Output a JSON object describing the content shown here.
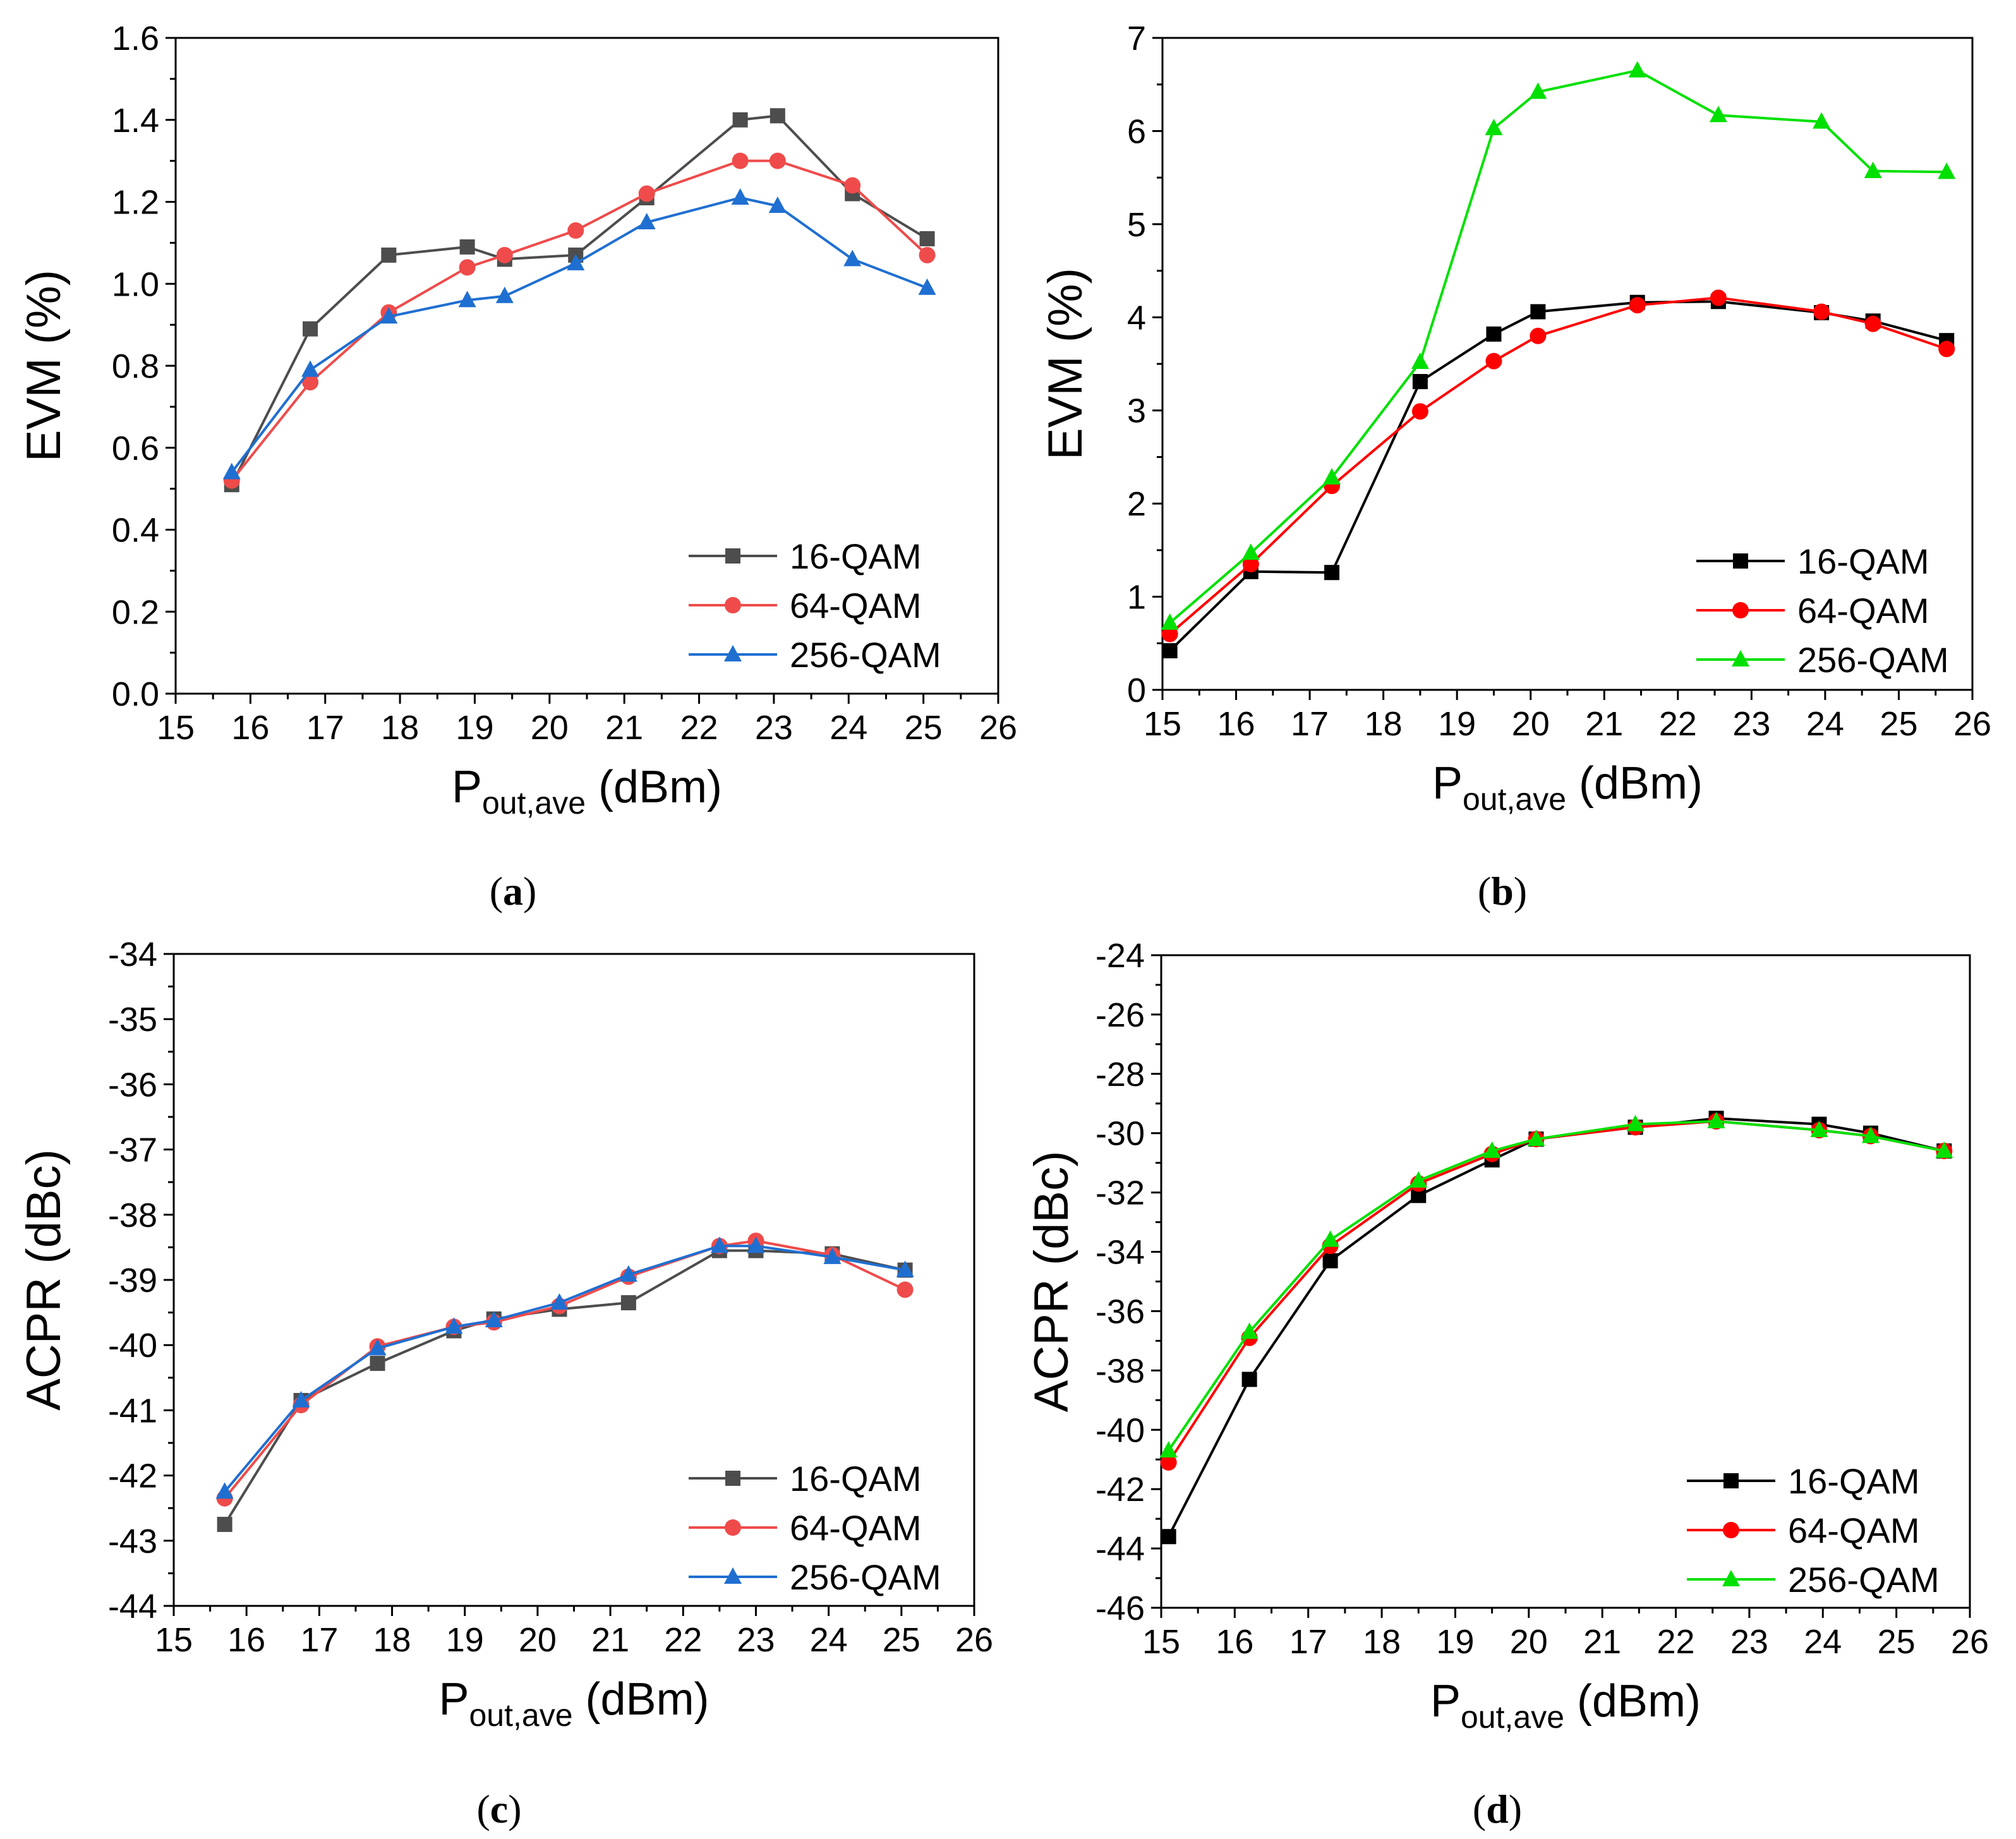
{
  "figure": {
    "captions": [
      "(a)",
      "(b)",
      "(c)",
      "(d)"
    ],
    "caption_parts": [
      {
        "open": "(",
        "letter": "a",
        "close": ")"
      },
      {
        "open": "(",
        "letter": "b",
        "close": ")"
      },
      {
        "open": "(",
        "letter": "c",
        "close": ")"
      },
      {
        "open": "(",
        "letter": "d",
        "close": ")"
      }
    ]
  },
  "chart_data": [
    {
      "type": "line",
      "panel": "a",
      "title": "",
      "xlabel": "P_out,ave (dBm)",
      "xlabel_main": "P",
      "xlabel_sub": "out,ave",
      "xlabel_rest": " (dBm)",
      "ylabel": "EVM (%)",
      "xlim": [
        15,
        26
      ],
      "ylim": [
        0.0,
        1.6
      ],
      "xticks": [
        15,
        16,
        17,
        18,
        19,
        20,
        21,
        22,
        23,
        24,
        25,
        26
      ],
      "yticks": [
        0.0,
        0.2,
        0.4,
        0.6,
        0.8,
        1.0,
        1.2,
        1.4,
        1.6
      ],
      "ytick_labels": [
        "0.0",
        "0.2",
        "0.4",
        "0.6",
        "0.8",
        "1.0",
        "1.2",
        "1.4",
        "1.6"
      ],
      "legend_position": "bottom-right",
      "series": [
        {
          "name": "16-QAM",
          "color": "#4d4d4d",
          "marker": "square",
          "x": [
            15.75,
            16.8,
            17.85,
            18.9,
            19.4,
            20.35,
            21.3,
            22.55,
            23.05,
            24.05,
            25.05
          ],
          "y": [
            0.51,
            0.89,
            1.07,
            1.09,
            1.06,
            1.07,
            1.21,
            1.4,
            1.41,
            1.22,
            1.11
          ]
        },
        {
          "name": "64-QAM",
          "color": "#ef4b4b",
          "marker": "circle",
          "x": [
            15.75,
            16.8,
            17.85,
            18.9,
            19.4,
            20.35,
            21.3,
            22.55,
            23.05,
            24.05,
            25.05
          ],
          "y": [
            0.52,
            0.76,
            0.93,
            1.04,
            1.07,
            1.13,
            1.22,
            1.3,
            1.3,
            1.24,
            1.07
          ]
        },
        {
          "name": "256-QAM",
          "color": "#1f6fd1",
          "marker": "triangle",
          "x": [
            15.75,
            16.8,
            17.85,
            18.9,
            19.4,
            20.35,
            21.3,
            22.55,
            23.05,
            24.05,
            25.05
          ],
          "y": [
            0.54,
            0.79,
            0.92,
            0.96,
            0.97,
            1.05,
            1.15,
            1.21,
            1.19,
            1.06,
            0.99
          ]
        }
      ]
    },
    {
      "type": "line",
      "panel": "b",
      "title": "",
      "xlabel": "P_out,ave (dBm)",
      "xlabel_main": "P",
      "xlabel_sub": "out,ave",
      "xlabel_rest": " (dBm)",
      "ylabel": "EVM (%)",
      "xlim": [
        15,
        26
      ],
      "ylim": [
        0,
        7
      ],
      "xticks": [
        15,
        16,
        17,
        18,
        19,
        20,
        21,
        22,
        23,
        24,
        25,
        26
      ],
      "yticks": [
        0,
        1,
        2,
        3,
        4,
        5,
        6,
        7
      ],
      "ytick_labels": [
        "0",
        "1",
        "2",
        "3",
        "4",
        "5",
        "6",
        "7"
      ],
      "legend_position": "bottom-right",
      "series": [
        {
          "name": "16-QAM",
          "color": "#000000",
          "marker": "square",
          "x": [
            15.1,
            16.2,
            17.3,
            18.5,
            19.5,
            20.1,
            21.45,
            22.55,
            23.95,
            24.65,
            25.65
          ],
          "y": [
            0.42,
            1.27,
            1.26,
            3.31,
            3.82,
            4.06,
            4.16,
            4.17,
            4.05,
            3.96,
            3.75
          ]
        },
        {
          "name": "64-QAM",
          "color": "#ff0000",
          "marker": "circle",
          "x": [
            15.1,
            16.2,
            17.3,
            18.5,
            19.5,
            20.1,
            21.45,
            22.55,
            23.95,
            24.65,
            25.65
          ],
          "y": [
            0.6,
            1.35,
            2.19,
            2.99,
            3.53,
            3.8,
            4.13,
            4.21,
            4.06,
            3.93,
            3.66
          ]
        },
        {
          "name": "256-QAM",
          "color": "#00e000",
          "marker": "triangle",
          "x": [
            15.1,
            16.2,
            17.3,
            18.5,
            19.5,
            20.1,
            21.45,
            22.55,
            23.95,
            24.65,
            25.65
          ],
          "y": [
            0.72,
            1.47,
            2.28,
            3.52,
            6.03,
            6.42,
            6.65,
            6.17,
            6.1,
            5.57,
            5.56
          ]
        }
      ]
    },
    {
      "type": "line",
      "panel": "c",
      "title": "",
      "xlabel": "P_out,ave (dBm)",
      "xlabel_main": "P",
      "xlabel_sub": "out,ave",
      "xlabel_rest": " (dBm)",
      "ylabel": "ACPR (dBc)",
      "xlim": [
        15,
        26
      ],
      "ylim": [
        -44,
        -34
      ],
      "xticks": [
        15,
        16,
        17,
        18,
        19,
        20,
        21,
        22,
        23,
        24,
        25,
        26
      ],
      "yticks": [
        -44,
        -43,
        -42,
        -41,
        -40,
        -39,
        -38,
        -37,
        -36,
        -35,
        -34
      ],
      "ytick_labels": [
        "-44",
        "-43",
        "-42",
        "-41",
        "-40",
        "-39",
        "-38",
        "-37",
        "-36",
        "-35",
        "-34"
      ],
      "legend_position": "bottom-right",
      "series": [
        {
          "name": "16-QAM",
          "color": "#4d4d4d",
          "marker": "square",
          "x": [
            15.7,
            16.75,
            17.8,
            18.85,
            19.4,
            20.3,
            21.25,
            22.5,
            23.0,
            24.05,
            25.05
          ],
          "y": [
            -42.75,
            -40.85,
            -40.28,
            -39.78,
            -39.6,
            -39.45,
            -39.35,
            -38.55,
            -38.55,
            -38.6,
            -38.85
          ]
        },
        {
          "name": "64-QAM",
          "color": "#ef4b4b",
          "marker": "circle",
          "x": [
            15.7,
            16.75,
            17.8,
            18.85,
            19.4,
            20.3,
            21.25,
            22.5,
            23.0,
            24.05,
            25.05
          ],
          "y": [
            -42.35,
            -40.92,
            -40.02,
            -39.72,
            -39.65,
            -39.4,
            -38.95,
            -38.48,
            -38.4,
            -38.62,
            -39.15
          ]
        },
        {
          "name": "256-QAM",
          "color": "#1f6fd1",
          "marker": "triangle",
          "x": [
            15.7,
            16.75,
            17.8,
            18.85,
            19.4,
            20.3,
            21.25,
            22.5,
            23.0,
            24.05,
            25.05
          ],
          "y": [
            -42.25,
            -40.85,
            -40.05,
            -39.72,
            -39.62,
            -39.35,
            -38.92,
            -38.48,
            -38.48,
            -38.65,
            -38.85
          ]
        }
      ]
    },
    {
      "type": "line",
      "panel": "d",
      "title": "",
      "xlabel": "P_out,ave (dBm)",
      "xlabel_main": "P",
      "xlabel_sub": "out,ave",
      "xlabel_rest": " (dBm)",
      "ylabel": "ACPR (dBc)",
      "xlim": [
        15,
        26
      ],
      "ylim": [
        -46,
        -24
      ],
      "xticks": [
        15,
        16,
        17,
        18,
        19,
        20,
        21,
        22,
        23,
        24,
        25,
        26
      ],
      "yticks": [
        -46,
        -44,
        -42,
        -40,
        -38,
        -36,
        -34,
        -32,
        -30,
        -28,
        -26,
        -24
      ],
      "ytick_labels": [
        "-46",
        "-44",
        "-42",
        "-40",
        "-38",
        "-36",
        "-34",
        "-32",
        "-30",
        "-28",
        "-26",
        "-24"
      ],
      "legend_position": "bottom-right",
      "series": [
        {
          "name": "16-QAM",
          "color": "#000000",
          "marker": "square",
          "x": [
            15.1,
            16.2,
            17.3,
            18.5,
            19.5,
            20.1,
            21.45,
            22.55,
            23.95,
            24.65,
            25.65
          ],
          "y": [
            -43.6,
            -38.3,
            -34.3,
            -32.1,
            -30.9,
            -30.2,
            -29.8,
            -29.5,
            -29.7,
            -30.0,
            -30.6
          ]
        },
        {
          "name": "64-QAM",
          "color": "#ff0000",
          "marker": "circle",
          "x": [
            15.1,
            16.2,
            17.3,
            18.5,
            19.5,
            20.1,
            21.45,
            22.55,
            23.95,
            24.65,
            25.65
          ],
          "y": [
            -41.1,
            -36.9,
            -33.8,
            -31.7,
            -30.7,
            -30.2,
            -29.8,
            -29.6,
            -29.9,
            -30.1,
            -30.6
          ]
        },
        {
          "name": "256-QAM",
          "color": "#00e000",
          "marker": "triangle",
          "x": [
            15.1,
            16.2,
            17.3,
            18.5,
            19.5,
            20.1,
            21.45,
            22.55,
            23.95,
            24.65,
            25.65
          ],
          "y": [
            -40.7,
            -36.7,
            -33.6,
            -31.6,
            -30.6,
            -30.2,
            -29.7,
            -29.6,
            -29.9,
            -30.1,
            -30.6
          ]
        }
      ]
    }
  ]
}
